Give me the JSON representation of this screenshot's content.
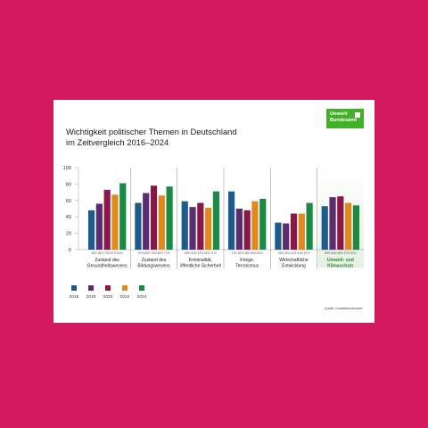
{
  "title_line1": "Wichtigkeit politischer Themen in Deutschland",
  "title_line2": "im Zeitvergleich 2016–2024",
  "logo": {
    "line1": "Umwelt",
    "line2": "Bundesamt"
  },
  "source": "Quelle: Umweltbundesamt",
  "colors": {
    "background": "#d41a5e",
    "highlight_text": "#2e8b3a",
    "highlight_bg": "#e6f0e2"
  },
  "chart_data": {
    "type": "bar",
    "ylim": [
      0,
      100
    ],
    "yticks": [
      "0",
      "20",
      "40",
      "60",
      "80",
      "100"
    ],
    "categories": [
      "Zustand des Gesundheitswesens",
      "Zustand des Bildungswesens",
      "Kriminalität, öffentliche Sicherheit",
      "Kriege, Terrorismus",
      "Wirtschaftliche Entwicklung",
      "Umwelt- und Klimaschutz"
    ],
    "category_lines": [
      [
        "Zustand des",
        "Gesundheitswesens"
      ],
      [
        "Zustand des",
        "Bildungswesens"
      ],
      [
        "Kriminalität,",
        "öffentliche Sicherheit"
      ],
      [
        "Kriege,",
        "Terrorismus"
      ],
      [
        "Wirtschaftliche",
        "Entwicklung"
      ],
      [
        "Umwelt- und",
        "Klimaschutz"
      ]
    ],
    "highlighted_category": "Umwelt- und Klimaschutz",
    "series": [
      {
        "name": "2016",
        "color": "#1d5b8f",
        "values": [
          48,
          57,
          59,
          71,
          33,
          53
        ]
      },
      {
        "name": "2018",
        "color": "#5b2c6f",
        "values": [
          56,
          69,
          52,
          50,
          32,
          64
        ]
      },
      {
        "name": "2020",
        "color": "#8a1747",
        "values": [
          73,
          78,
          57,
          48,
          44,
          65
        ]
      },
      {
        "name": "2022",
        "color": "#e08a1e",
        "values": [
          67,
          66,
          51,
          59,
          44,
          57
        ]
      },
      {
        "name": "2024",
        "color": "#1a8a44",
        "values": [
          81,
          77,
          71,
          62,
          57,
          54
        ]
      }
    ],
    "value_labels": [
      [
        "48%",
        "56%",
        "73%",
        "67%",
        "81%"
      ],
      [
        "57%",
        "69%",
        "78%",
        "66%",
        "77%"
      ],
      [
        "59%",
        "52%",
        "57%",
        "51%",
        "71%"
      ],
      [
        "71%",
        "50%",
        "48%",
        "59%",
        "62%"
      ],
      [
        "33%",
        "32%",
        "44%",
        "44%",
        "57%"
      ],
      [
        "53%",
        "64%",
        "65%",
        "57%",
        "54%"
      ]
    ],
    "legend_position": "bottom-left",
    "grid": false
  }
}
